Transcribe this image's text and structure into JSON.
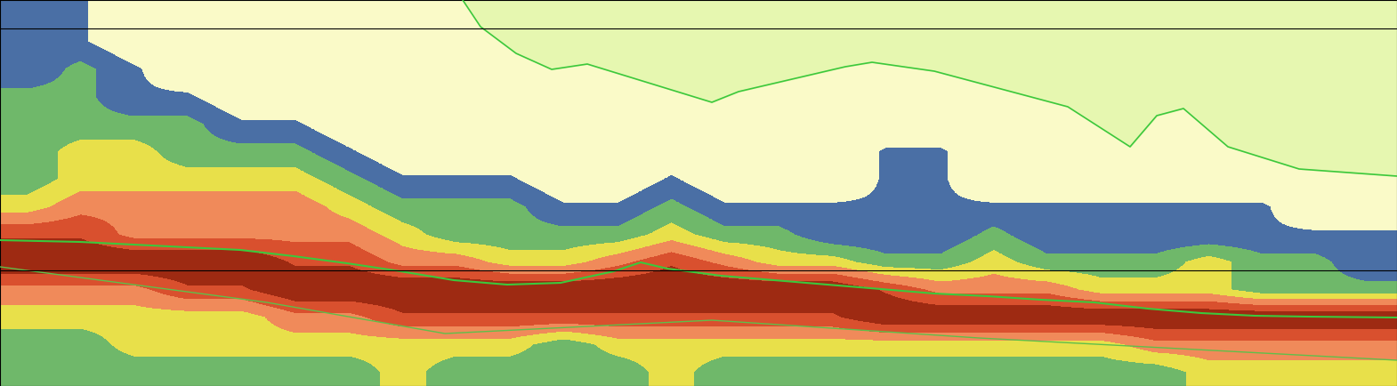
{
  "chart_data": {
    "type": "heatmap",
    "tick_labels": false,
    "xlim": [
      0,
      1570
    ],
    "ylim": [
      434,
      0
    ],
    "vlim": [
      0,
      6
    ],
    "cells": [
      [
        1,
        1,
        0,
        0,
        0,
        0,
        0,
        0,
        0,
        0,
        0,
        0,
        0,
        0,
        0,
        0,
        0,
        0,
        0,
        0,
        0,
        0,
        0,
        0,
        0,
        0
      ],
      [
        1,
        1,
        0,
        0,
        0,
        0,
        0,
        0,
        0,
        0,
        0,
        0,
        0,
        0,
        0,
        0,
        0,
        0,
        0,
        0,
        0,
        0,
        0,
        0,
        0,
        0
      ],
      [
        1,
        2,
        1,
        0,
        0,
        0,
        0,
        0,
        0,
        0,
        0,
        0,
        0,
        0,
        0,
        0,
        0,
        0,
        0,
        0,
        0,
        0,
        0,
        0,
        0,
        0
      ],
      [
        2,
        2,
        1,
        1,
        0,
        0,
        0,
        0,
        0,
        0,
        0,
        0,
        0,
        0,
        0,
        0,
        0,
        0,
        0,
        0,
        0,
        0,
        0,
        0,
        0,
        0
      ],
      [
        2,
        2,
        2,
        2,
        1,
        1,
        0,
        0,
        0,
        0,
        0,
        0,
        0,
        0,
        0,
        0,
        0,
        0,
        0,
        0,
        0,
        0,
        0,
        0,
        0,
        0
      ],
      [
        2,
        3,
        3,
        2,
        2,
        2,
        1,
        0,
        0,
        0,
        0,
        0,
        0,
        0,
        0,
        0,
        1,
        1,
        0,
        0,
        0,
        0,
        0,
        0,
        0,
        0
      ],
      [
        2,
        3,
        3,
        3,
        3,
        3,
        2,
        1,
        1,
        1,
        0,
        0,
        1,
        0,
        0,
        0,
        1,
        1,
        0,
        0,
        0,
        0,
        0,
        0,
        0,
        0
      ],
      [
        3,
        4,
        4,
        4,
        4,
        4,
        3,
        2,
        2,
        2,
        1,
        1,
        2,
        1,
        1,
        1,
        1,
        1,
        1,
        1,
        1,
        1,
        1,
        1,
        0,
        0
      ],
      [
        5,
        5,
        4,
        4,
        4,
        4,
        4,
        3,
        2,
        2,
        2,
        2,
        3,
        2,
        2,
        1,
        1,
        1,
        2,
        1,
        1,
        1,
        1,
        1,
        1,
        1
      ],
      [
        6,
        6,
        6,
        6,
        6,
        5,
        5,
        4,
        4,
        3,
        3,
        4,
        5,
        4,
        3,
        3,
        2,
        2,
        3,
        2,
        2,
        2,
        3,
        2,
        2,
        1
      ],
      [
        4,
        4,
        4,
        5,
        5,
        6,
        6,
        6,
        6,
        6,
        6,
        6,
        6,
        6,
        6,
        6,
        5,
        4,
        4,
        4,
        3,
        3,
        3,
        2,
        2,
        2
      ],
      [
        3,
        3,
        3,
        3,
        3,
        4,
        4,
        5,
        5,
        5,
        5,
        5,
        5,
        5,
        5,
        5,
        6,
        6,
        6,
        6,
        6,
        6,
        6,
        6,
        6,
        6
      ],
      [
        2,
        2,
        3,
        3,
        3,
        3,
        3,
        3,
        3,
        3,
        2,
        3,
        3,
        3,
        3,
        3,
        3,
        3,
        3,
        3,
        3,
        4,
        4,
        4,
        4,
        4
      ],
      [
        2,
        2,
        2,
        2,
        2,
        2,
        2,
        3,
        2,
        2,
        2,
        2,
        3,
        2,
        2,
        2,
        2,
        2,
        2,
        2,
        2,
        2,
        3,
        3,
        3,
        3
      ]
    ],
    "bottom_line": {
      "color": "#3cc83c",
      "x": [
        0,
        90,
        210,
        270,
        330,
        390,
        450,
        510,
        570,
        630,
        690,
        720,
        750,
        810,
        870,
        930,
        990,
        1050,
        1110,
        1170,
        1230,
        1290,
        1350,
        1410,
        1470,
        1570
      ],
      "y": [
        270,
        272,
        278,
        281,
        288,
        296,
        305,
        315,
        320,
        318,
        305,
        295,
        302,
        310,
        315,
        320,
        325,
        330,
        333,
        337,
        340,
        347,
        352,
        355,
        356,
        357
      ]
    },
    "bottom_offset_line": {
      "color": "#5fbf4a",
      "x": [
        0,
        300,
        500,
        800,
        1100,
        1570
      ],
      "y": [
        300,
        340,
        375,
        360,
        380,
        405
      ]
    },
    "surface_line": {
      "color": "#3cc83c",
      "x": [
        520,
        540,
        580,
        620,
        660,
        800,
        830,
        950,
        980,
        1050,
        1200,
        1270,
        1300,
        1330,
        1380,
        1460,
        1570
      ],
      "y": [
        0,
        30,
        60,
        78,
        72,
        115,
        103,
        75,
        70,
        80,
        120,
        165,
        130,
        122,
        165,
        190,
        198
      ]
    },
    "reference_depths": [
      32,
      304
    ]
  }
}
